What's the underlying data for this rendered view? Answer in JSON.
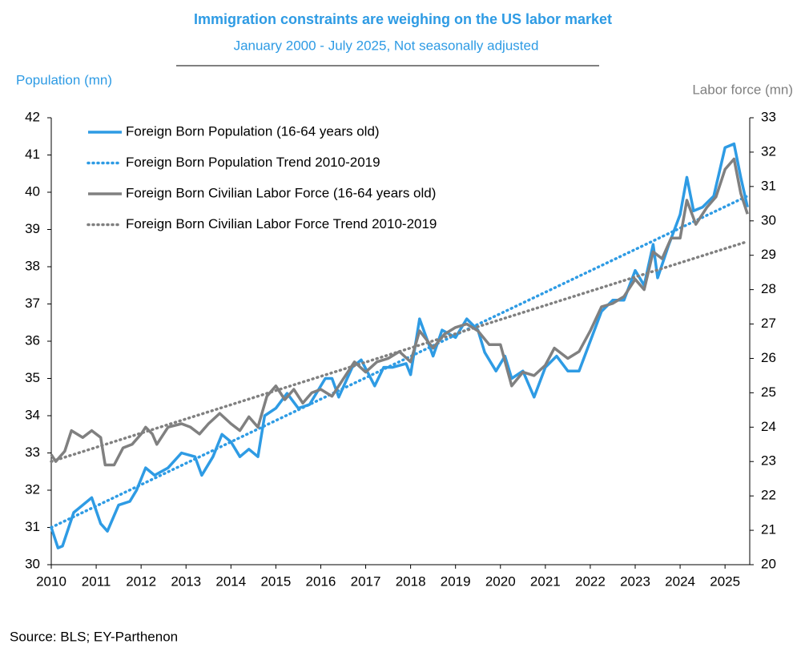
{
  "chart_data": {
    "type": "line",
    "title": "Immigration constraints are weighing on the US labor market",
    "subtitle": "January 2000 - July 2025, Not seasonally adjusted",
    "y_label": "Population (mn)",
    "y2_label": "Labor force (mn)",
    "source": "Source: BLS; EY-Parthenon",
    "xlim": [
      2010,
      2025.55
    ],
    "xticks": [
      2010,
      2011,
      2012,
      2013,
      2014,
      2015,
      2016,
      2017,
      2018,
      2019,
      2020,
      2021,
      2022,
      2023,
      2024,
      2025
    ],
    "ylim": [
      30,
      42
    ],
    "yticks": [
      30,
      31,
      32,
      33,
      34,
      35,
      36,
      37,
      38,
      39,
      40,
      41,
      42
    ],
    "y2lim": [
      20,
      33
    ],
    "y2ticks": [
      20,
      21,
      22,
      23,
      24,
      25,
      26,
      27,
      28,
      29,
      30,
      31,
      32,
      33
    ],
    "legend": "upper left",
    "series": [
      {
        "name": "Foreign Born Population (16-64 years old)",
        "color": "#2e9be4",
        "style": "solid",
        "axis": "y",
        "x": [
          2010.0,
          2010.15,
          2010.25,
          2010.5,
          2010.9,
          2011.1,
          2011.25,
          2011.5,
          2011.75,
          2011.9,
          2012.1,
          2012.3,
          2012.6,
          2012.9,
          2013.2,
          2013.35,
          2013.6,
          2013.8,
          2014.0,
          2014.2,
          2014.4,
          2014.6,
          2014.75,
          2015.0,
          2015.25,
          2015.5,
          2015.75,
          2016.1,
          2016.25,
          2016.4,
          2016.7,
          2016.9,
          2017.2,
          2017.4,
          2017.6,
          2017.9,
          2018.0,
          2018.2,
          2018.5,
          2018.7,
          2019.0,
          2019.25,
          2019.5,
          2019.65,
          2019.9,
          2020.1,
          2020.25,
          2020.5,
          2020.75,
          2021.0,
          2021.25,
          2021.5,
          2021.75,
          2022.0,
          2022.25,
          2022.5,
          2022.75,
          2023.0,
          2023.2,
          2023.4,
          2023.5,
          2023.75,
          2024.0,
          2024.15,
          2024.3,
          2024.5,
          2024.75,
          2025.0,
          2025.2,
          2025.35,
          2025.5
        ],
        "values": [
          31.0,
          30.45,
          30.5,
          31.4,
          31.8,
          31.1,
          30.9,
          31.6,
          31.7,
          32.0,
          32.6,
          32.4,
          32.6,
          33.0,
          32.9,
          32.4,
          32.9,
          33.5,
          33.3,
          32.9,
          33.1,
          32.9,
          34.0,
          34.2,
          34.6,
          34.2,
          34.3,
          35.0,
          35.0,
          34.5,
          35.3,
          35.5,
          34.8,
          35.3,
          35.3,
          35.4,
          35.1,
          36.6,
          35.6,
          36.3,
          36.1,
          36.6,
          36.3,
          35.7,
          35.2,
          35.6,
          35.0,
          35.2,
          34.5,
          35.3,
          35.6,
          35.2,
          35.2,
          36.0,
          36.8,
          37.1,
          37.1,
          37.9,
          37.5,
          38.6,
          37.7,
          38.6,
          39.4,
          40.4,
          39.5,
          39.6,
          39.9,
          41.2,
          41.3,
          40.4,
          39.6
        ]
      },
      {
        "name": "Foreign Born Population Trend 2010-2019",
        "color": "#2e9be4",
        "style": "dotted",
        "axis": "y",
        "x": [
          2010.0,
          2025.5
        ],
        "values": [
          31.0,
          39.9
        ]
      },
      {
        "name": "Foreign Born Civilian Labor Force (16-64 years old)",
        "color": "#808080",
        "style": "solid",
        "axis": "y2",
        "x": [
          2010.0,
          2010.1,
          2010.3,
          2010.45,
          2010.7,
          2010.9,
          2011.1,
          2011.2,
          2011.4,
          2011.6,
          2011.8,
          2012.0,
          2012.1,
          2012.25,
          2012.35,
          2012.6,
          2012.9,
          2013.1,
          2013.3,
          2013.5,
          2013.75,
          2014.0,
          2014.2,
          2014.4,
          2014.6,
          2014.8,
          2015.0,
          2015.2,
          2015.4,
          2015.6,
          2015.8,
          2016.0,
          2016.25,
          2016.5,
          2016.75,
          2017.0,
          2017.25,
          2017.5,
          2017.75,
          2018.0,
          2018.2,
          2018.5,
          2018.75,
          2019.0,
          2019.25,
          2019.5,
          2019.75,
          2020.0,
          2020.25,
          2020.5,
          2020.75,
          2021.0,
          2021.2,
          2021.5,
          2021.75,
          2022.0,
          2022.25,
          2022.5,
          2022.75,
          2023.0,
          2023.2,
          2023.4,
          2023.6,
          2023.8,
          2024.0,
          2024.15,
          2024.35,
          2024.6,
          2024.8,
          2025.0,
          2025.2,
          2025.35,
          2025.5
        ],
        "values": [
          23.2,
          23.0,
          23.3,
          23.9,
          23.7,
          23.9,
          23.7,
          22.9,
          22.9,
          23.4,
          23.5,
          23.8,
          24.0,
          23.8,
          23.5,
          24.0,
          24.1,
          24.0,
          23.8,
          24.1,
          24.4,
          24.1,
          23.9,
          24.3,
          24.0,
          24.9,
          25.2,
          24.8,
          25.1,
          24.7,
          25.0,
          25.1,
          24.9,
          25.4,
          25.9,
          25.6,
          25.9,
          26.0,
          26.2,
          25.9,
          26.8,
          26.3,
          26.7,
          26.9,
          27.0,
          26.8,
          26.4,
          26.4,
          25.2,
          25.6,
          25.5,
          25.8,
          26.3,
          26.0,
          26.2,
          26.8,
          27.5,
          27.6,
          27.8,
          28.3,
          28.0,
          29.1,
          28.9,
          29.5,
          29.5,
          30.6,
          29.9,
          30.4,
          30.7,
          31.5,
          31.8,
          30.8,
          30.2
        ]
      },
      {
        "name": "Foreign Born Civilian Labor Force Trend 2010-2019",
        "color": "#808080",
        "style": "dotted",
        "axis": "y2",
        "x": [
          2010.0,
          2025.5
        ],
        "values": [
          23.0,
          29.4
        ]
      }
    ]
  }
}
